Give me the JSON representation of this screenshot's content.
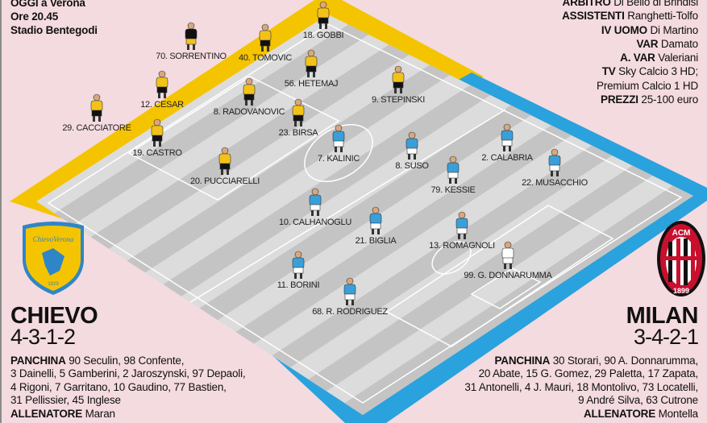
{
  "match_info": {
    "lines": [
      "OGGI a Verona",
      "Ore 20.45",
      "Stadio Bentegodi"
    ]
  },
  "officials": [
    {
      "label": "ARBITRO",
      "value": "Di Bello di Brindisi"
    },
    {
      "label": "ASSISTENTI",
      "value": "Ranghetti-Tolfo"
    },
    {
      "label": "IV UOMO",
      "value": "Di Martino"
    },
    {
      "label": "VAR",
      "value": "Damato"
    },
    {
      "label": "A. VAR",
      "value": "Valeriani"
    },
    {
      "label": "TV",
      "value": "Sky Calcio 3 HD;"
    },
    {
      "label": "",
      "value": "Premium Calcio 1 HD"
    },
    {
      "label": "PREZZI",
      "value": "25-100 euro"
    }
  ],
  "home": {
    "name": "CHIEVO",
    "formation": "4-3-1-2",
    "logo_text": [
      "ChievoVerona",
      "1929"
    ],
    "bench_label": "PANCHINA",
    "bench_lines": [
      "90 Seculin, 98 Confente,",
      "3 Dainelli, 5 Gamberini, 2 Jaroszynski, 97 Depaoli,",
      "4 Rigoni, 7 Garritano, 10 Gaudino, 77 Bastien,",
      "31 Pellissier, 45 Inglese"
    ],
    "coach_label": "ALLENATORE",
    "coach": "Maran",
    "colors": {
      "shirt": "#f2c219",
      "shorts": "#111111",
      "gk_shirt": "#111111",
      "gk_shorts": "#f2c219"
    },
    "players": [
      "70. SORRENTINO",
      "40. TOMOVIC",
      "18. GOBBI",
      "56. HETEMAJ",
      "12. CESAR",
      "8. RADOVANOVIC",
      "9. STEPINSKI",
      "29. CACCIATORE",
      "23. BIRSA",
      "19. CASTRO",
      "20. PUCCIARELLI"
    ]
  },
  "away": {
    "name": "MILAN",
    "formation": "3-4-2-1",
    "logo_text": [
      "ACM",
      "1899"
    ],
    "bench_label": "PANCHINA",
    "bench_lines": [
      "30 Storari, 90 A. Donnarumma,",
      "20 Abate, 15 G. Gomez, 29 Paletta, 17 Zapata,",
      "31 Antonelli, 4 J. Mauri, 18 Montolivo, 73 Locatelli,",
      "9 André Silva, 63 Cutrone"
    ],
    "coach_label": "ALLENATORE",
    "coach": "Montella",
    "colors": {
      "shirt": "#3a9fd8",
      "shorts": "#ffffff",
      "gk_shirt": "#ffffff",
      "gk_shorts": "#ffffff"
    },
    "players": [
      "7. KALINIC",
      "8. SUSO",
      "2. CALABRIA",
      "79. KESSIE",
      "22. MUSACCHIO",
      "10. CALHANOGLU",
      "21. BIGLIA",
      "13. ROMAGNOLI",
      "99. G. DONNARUMMA",
      "11. BORINI",
      "68. R. RODRIGUEZ"
    ]
  },
  "colors": {
    "background": "#f4dbe0",
    "home_border": "#f5c400",
    "away_border": "#2aa2dd",
    "pitch_light": "#dcdcdc",
    "pitch_dark": "#c4c4c4"
  }
}
